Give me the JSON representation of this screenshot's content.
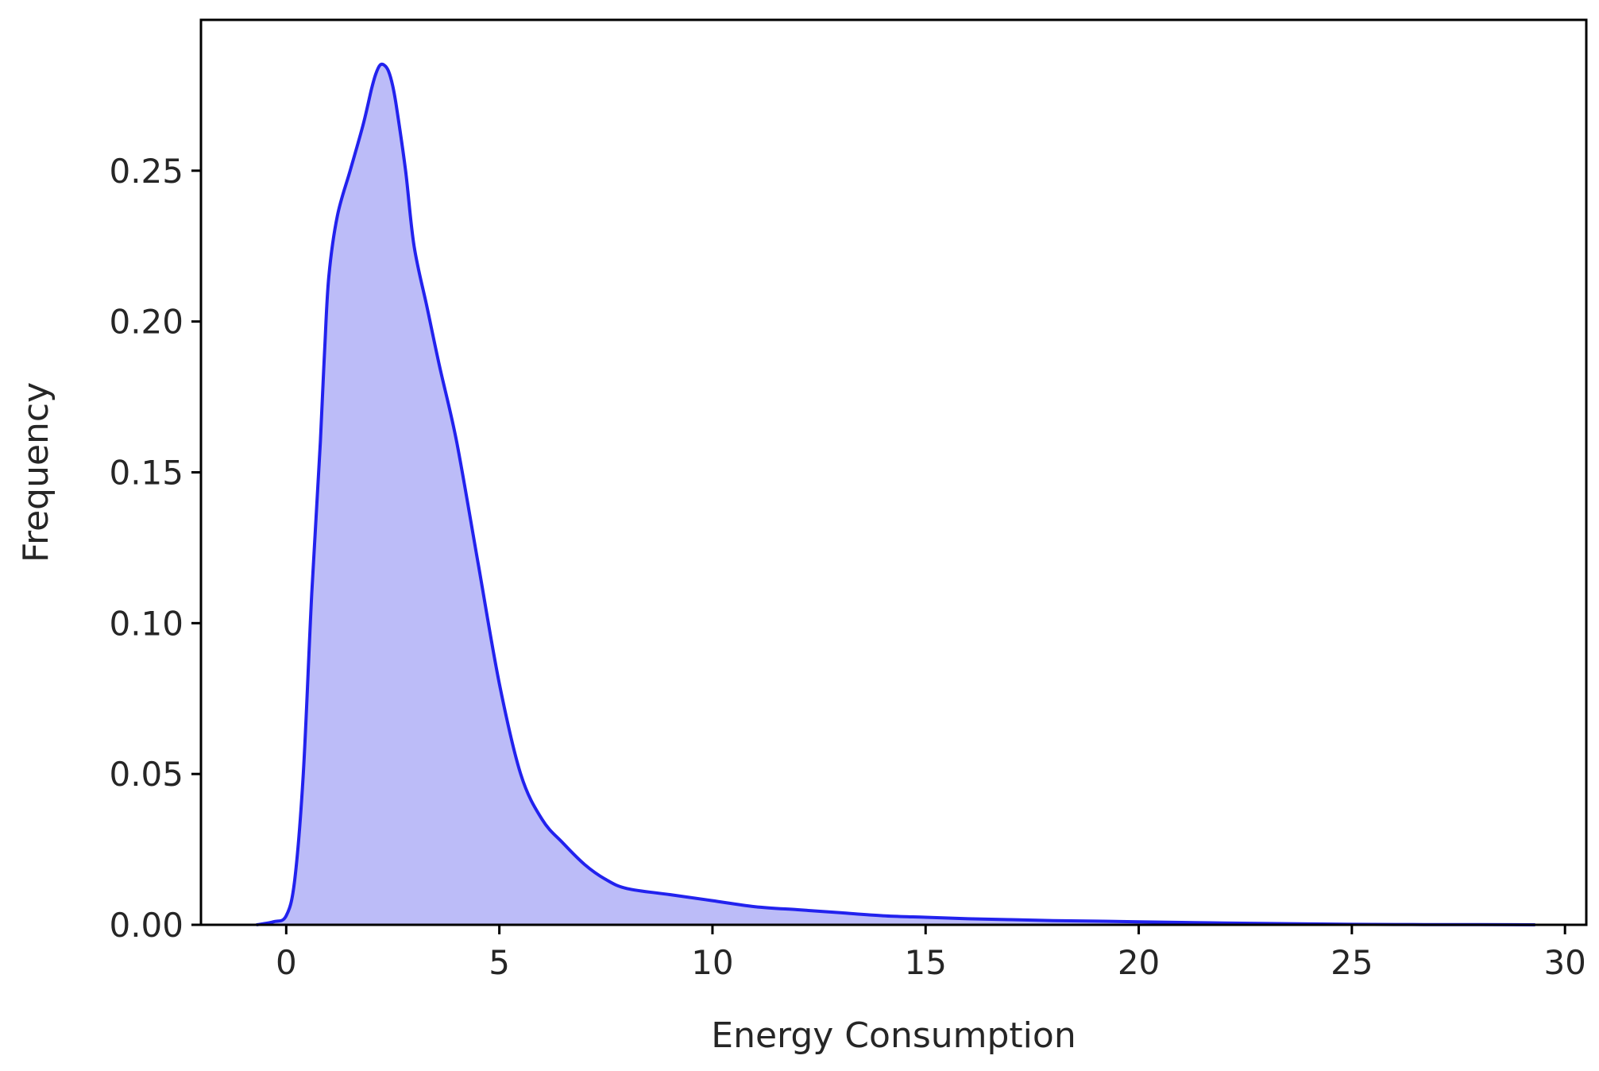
{
  "chart_data": {
    "type": "area",
    "title": "",
    "xlabel": "Energy Consumption",
    "ylabel": "Frequency",
    "xlim": [
      -2,
      30.5
    ],
    "ylim": [
      0,
      0.3
    ],
    "xticks": [
      0,
      5,
      10,
      15,
      20,
      25,
      30
    ],
    "yticks": [
      0.0,
      0.05,
      0.1,
      0.15,
      0.2,
      0.25
    ],
    "xtick_labels": [
      "0",
      "5",
      "10",
      "15",
      "20",
      "25",
      "30"
    ],
    "ytick_labels": [
      "0.00",
      "0.05",
      "0.10",
      "0.15",
      "0.20",
      "0.25"
    ],
    "grid": false,
    "legend": "none",
    "colors": {
      "line": "#2222ee",
      "fill": "#bcbcf8",
      "axes": "#000000"
    },
    "series": [
      {
        "x": [
          -0.7,
          -0.3,
          0.0,
          0.2,
          0.4,
          0.6,
          0.8,
          0.9,
          1.0,
          1.2,
          1.5,
          1.8,
          2.0,
          2.1,
          2.2,
          2.3,
          2.4,
          2.5,
          2.6,
          2.8,
          3.0,
          3.3,
          3.6,
          4.0,
          4.5,
          5.0,
          5.5,
          6.0,
          6.5,
          7.0,
          7.5,
          8.0,
          9.0,
          10.0,
          11.0,
          12.0,
          13.0,
          14.0,
          15.0,
          16.0,
          17.0,
          18.0,
          19.0,
          20.0,
          21.0,
          22.0,
          24.0,
          26.0,
          28.0,
          29.3
        ],
        "y": [
          0.0,
          0.001,
          0.003,
          0.015,
          0.05,
          0.11,
          0.16,
          0.19,
          0.215,
          0.235,
          0.25,
          0.265,
          0.277,
          0.282,
          0.285,
          0.285,
          0.283,
          0.278,
          0.27,
          0.25,
          0.225,
          0.205,
          0.185,
          0.16,
          0.12,
          0.08,
          0.05,
          0.035,
          0.027,
          0.02,
          0.015,
          0.012,
          0.01,
          0.008,
          0.006,
          0.005,
          0.004,
          0.003,
          0.0025,
          0.002,
          0.0017,
          0.0014,
          0.0012,
          0.001,
          0.0008,
          0.0006,
          0.0003,
          0.0001,
          5e-05,
          0.0
        ]
      }
    ]
  }
}
